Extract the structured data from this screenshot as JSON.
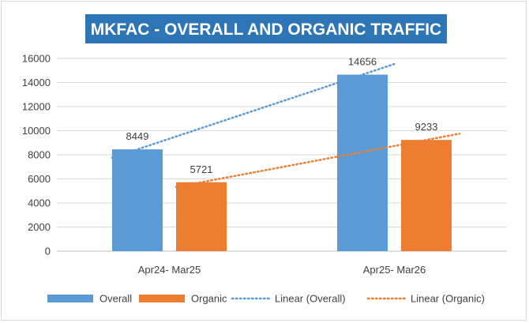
{
  "chart_data": {
    "type": "bar",
    "title": "MKFAC - OVERALL AND ORGANIC TRAFFIC",
    "categories": [
      "Apr24- Mar25",
      "Apr25- Mar26"
    ],
    "series": [
      {
        "name": "Overall",
        "values": [
          8449,
          14656
        ],
        "color": "#5b9bd5"
      },
      {
        "name": "Organic",
        "values": [
          5721,
          9233
        ],
        "color": "#ed7d31"
      }
    ],
    "trendlines": [
      {
        "name": "Linear (Overall)",
        "series": "Overall",
        "type": "linear",
        "color": "#5b9bd5",
        "style": "dotted"
      },
      {
        "name": "Linear (Organic)",
        "series": "Organic",
        "type": "linear",
        "color": "#ed7d31",
        "style": "dotted"
      }
    ],
    "y_ticks": [
      "0",
      "2000",
      "4000",
      "6000",
      "8000",
      "10000",
      "12000",
      "14000",
      "16000"
    ],
    "ylim": [
      0,
      16000
    ],
    "grid": true,
    "legend_position": "bottom",
    "xlabel": "",
    "ylabel": ""
  }
}
